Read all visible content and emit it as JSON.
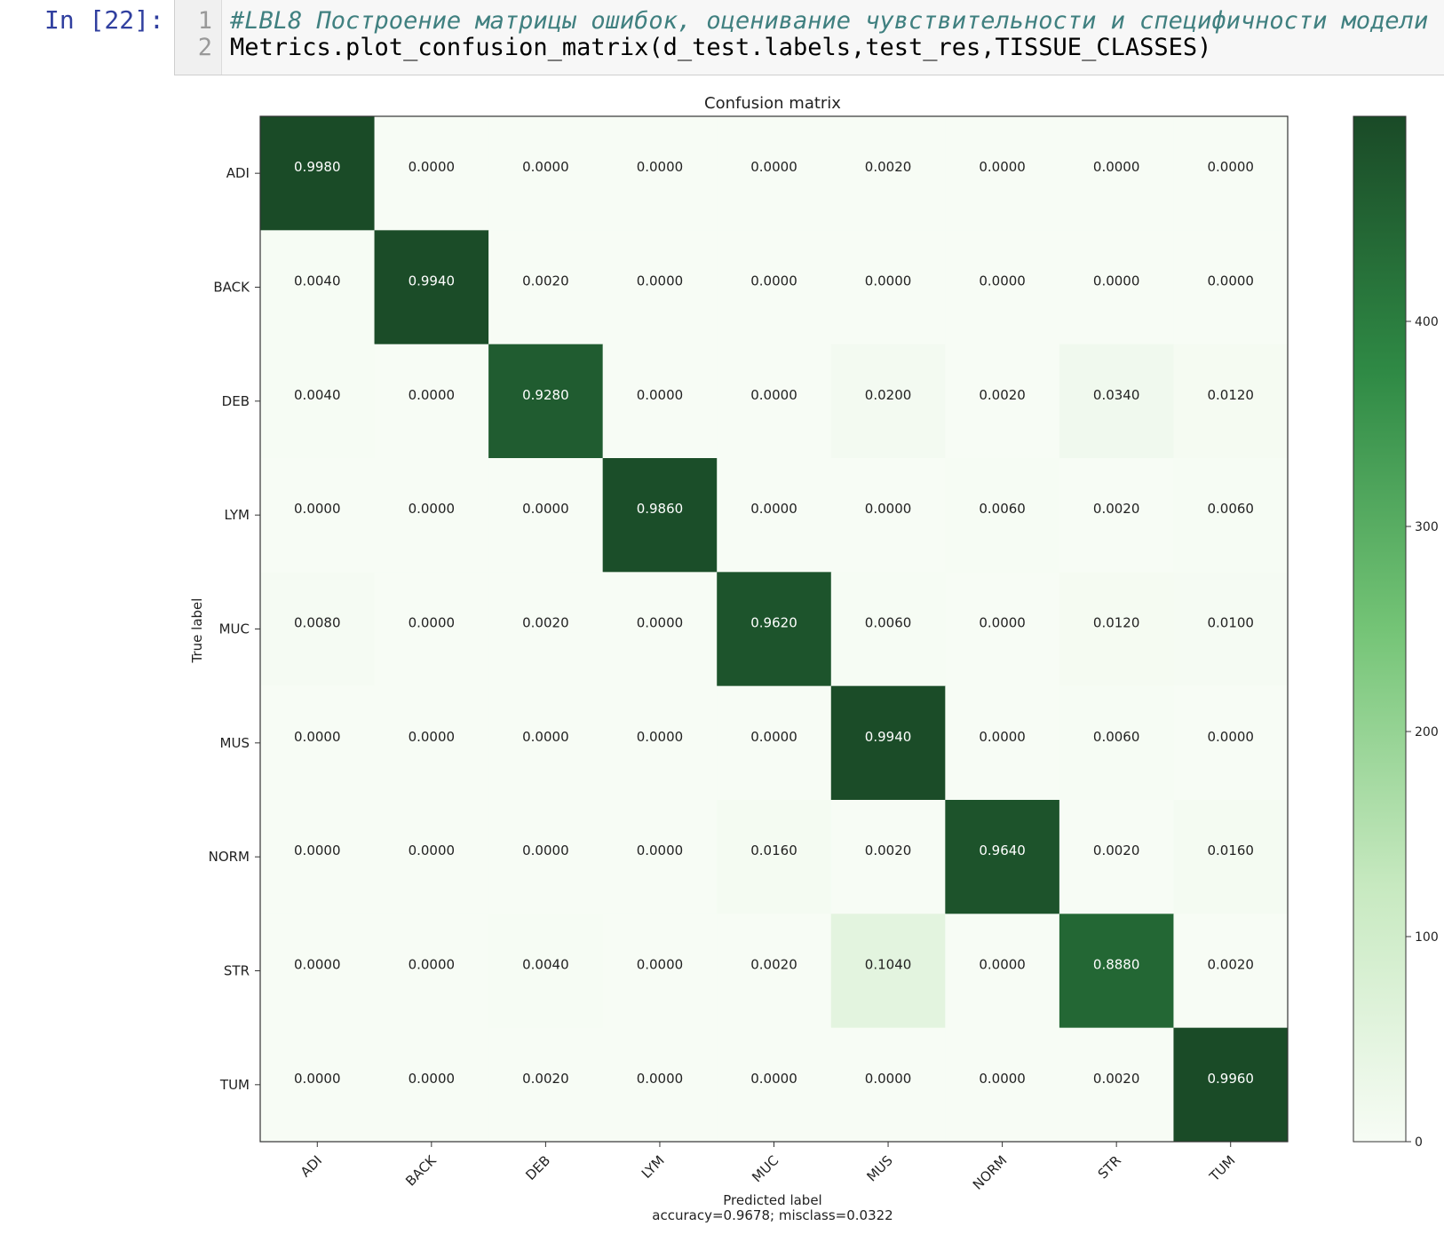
{
  "cell": {
    "prompt": "In [22]:",
    "lines": [
      {
        "number": "1",
        "text": "#LBL8 Построение матрицы ошибок, оценивание чувствительности и специфичности модели",
        "kind": "comment"
      },
      {
        "number": "2",
        "text": "Metrics.plot_confusion_matrix(d_test.labels,test_res,TISSUE_CLASSES)",
        "kind": "code"
      }
    ]
  },
  "chart_data": {
    "type": "heatmap",
    "title": "Confusion matrix",
    "xlabel": "Predicted label",
    "xlabel_sub": "accuracy=0.9678; misclass=0.0322",
    "ylabel": "True label",
    "classes": [
      "ADI",
      "BACK",
      "DEB",
      "LYM",
      "MUC",
      "MUS",
      "NORM",
      "STR",
      "TUM"
    ],
    "values": [
      [
        0.998,
        0.0,
        0.0,
        0.0,
        0.0,
        0.002,
        0.0,
        0.0,
        0.0
      ],
      [
        0.004,
        0.994,
        0.002,
        0.0,
        0.0,
        0.0,
        0.0,
        0.0,
        0.0
      ],
      [
        0.004,
        0.0,
        0.928,
        0.0,
        0.0,
        0.02,
        0.002,
        0.034,
        0.012
      ],
      [
        0.0,
        0.0,
        0.0,
        0.986,
        0.0,
        0.0,
        0.006,
        0.002,
        0.006
      ],
      [
        0.008,
        0.0,
        0.002,
        0.0,
        0.962,
        0.006,
        0.0,
        0.012,
        0.01
      ],
      [
        0.0,
        0.0,
        0.0,
        0.0,
        0.0,
        0.994,
        0.0,
        0.006,
        0.0
      ],
      [
        0.0,
        0.0,
        0.0,
        0.0,
        0.016,
        0.002,
        0.964,
        0.002,
        0.016
      ],
      [
        0.0,
        0.0,
        0.004,
        0.0,
        0.002,
        0.104,
        0.0,
        0.888,
        0.002
      ],
      [
        0.0,
        0.0,
        0.002,
        0.0,
        0.0,
        0.0,
        0.0,
        0.002,
        0.996
      ]
    ],
    "colorbar": {
      "min": 0,
      "max": 500,
      "ticks": [
        0,
        100,
        200,
        300,
        400
      ]
    },
    "colormap": "Greens",
    "colormap_light": "#f7fcf5",
    "colormap_dark": "#1a4a27"
  }
}
